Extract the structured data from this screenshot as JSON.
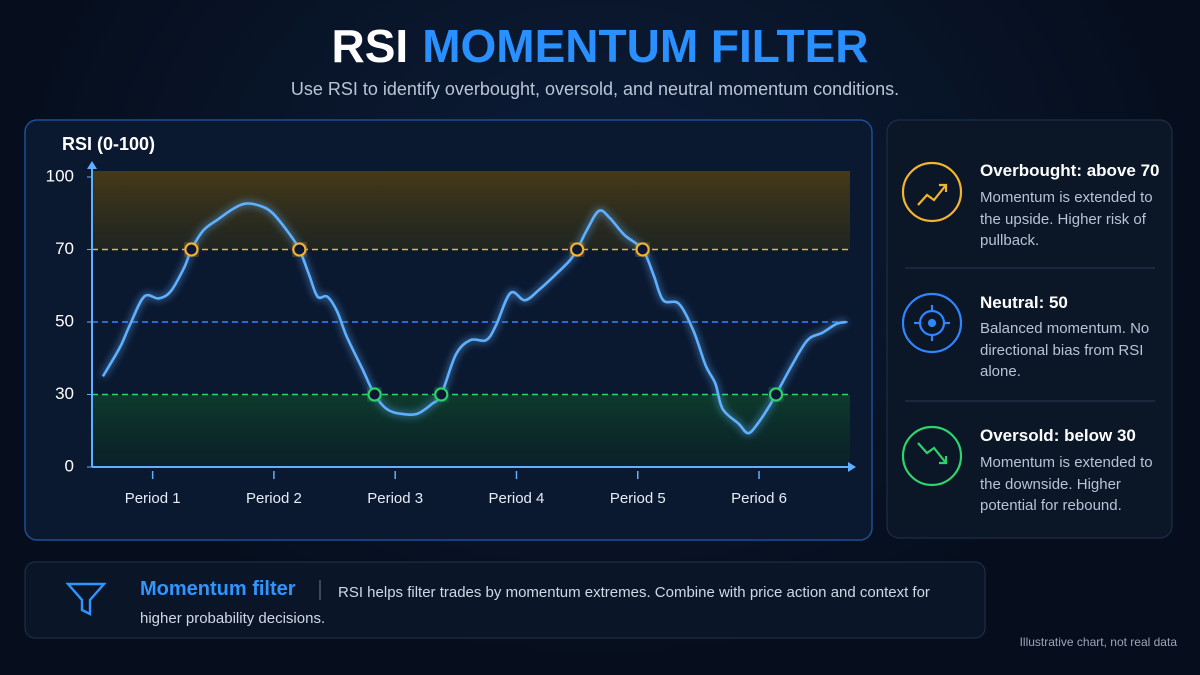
{
  "header": {
    "title_part1": "RSI",
    "title_part2": "MOMENTUM FILTER",
    "subtitle": "Use RSI to identify overbought, oversold, and neutral momentum conditions."
  },
  "chart_data": {
    "type": "line",
    "y_axis_label": "RSI (0-100)",
    "ylim": [
      0,
      100
    ],
    "yticks": [
      0,
      30,
      50,
      70,
      100
    ],
    "xlim": [
      0.5,
      6.75
    ],
    "xticks": [
      {
        "value": 1,
        "label": "Period 1"
      },
      {
        "value": 2,
        "label": "Period 2"
      },
      {
        "value": 3,
        "label": "Period 3"
      },
      {
        "value": 4,
        "label": "Period 4"
      },
      {
        "value": 5,
        "label": "Period 5"
      },
      {
        "value": 6,
        "label": "Period 6"
      }
    ],
    "levels": [
      {
        "value": 70,
        "color": "#f2b431",
        "zone": "above",
        "markers": true
      },
      {
        "value": 50,
        "color": "#2f86ff",
        "markers": false
      },
      {
        "value": 30,
        "color": "#2fd36b",
        "zone": "below",
        "markers": true
      }
    ],
    "series": [
      {
        "color": "#5fb0ff",
        "x": [
          0.59,
          0.73,
          0.81,
          0.93,
          1.05,
          1.15,
          1.26,
          1.32,
          1.42,
          1.54,
          1.67,
          1.77,
          1.89,
          1.99,
          2.12,
          2.21,
          2.29,
          2.36,
          2.44,
          2.52,
          2.6,
          2.73,
          2.83,
          2.93,
          3.05,
          3.18,
          3.3,
          3.38,
          3.5,
          3.62,
          3.75,
          3.83,
          3.95,
          4.07,
          4.19,
          4.32,
          4.44,
          4.5,
          4.58,
          4.68,
          4.77,
          4.89,
          5.04,
          5.13,
          5.21,
          5.34,
          5.46,
          5.56,
          5.64,
          5.7,
          5.83,
          5.91,
          5.99,
          6.07,
          6.14,
          6.27,
          6.4,
          6.52,
          6.64,
          6.72
        ],
        "values": [
          35,
          43,
          49,
          57,
          56.5,
          58.5,
          65,
          70,
          78,
          82.5,
          87,
          89,
          88,
          85,
          77,
          70,
          63,
          57,
          57,
          53,
          46,
          37,
          30,
          24,
          22,
          22,
          26,
          30,
          41,
          45,
          45,
          49,
          58,
          56,
          59,
          63,
          67,
          70,
          78,
          86,
          83,
          76,
          70,
          63,
          56,
          55,
          47.5,
          38,
          33,
          24,
          18,
          14,
          18,
          24,
          30,
          38,
          45,
          47,
          49.5,
          50
        ]
      }
    ]
  },
  "legend_panel": {
    "items": [
      {
        "title": "Overbought: above 70",
        "text": "Momentum is extended to the upside. Higher risk of pullback."
      },
      {
        "title": "Neutral: 50",
        "text": "Balanced momentum. No directional bias from RSI alone."
      },
      {
        "title": "Oversold: below 30",
        "text": "Momentum is extended to the downside. Higher potential for rebound."
      }
    ]
  },
  "footer_box": {
    "title": "Momentum filter",
    "text": "RSI helps filter trades by momentum extremes. Combine with price action and context for higher probability decisions."
  },
  "note": "Illustrative chart, not real data"
}
